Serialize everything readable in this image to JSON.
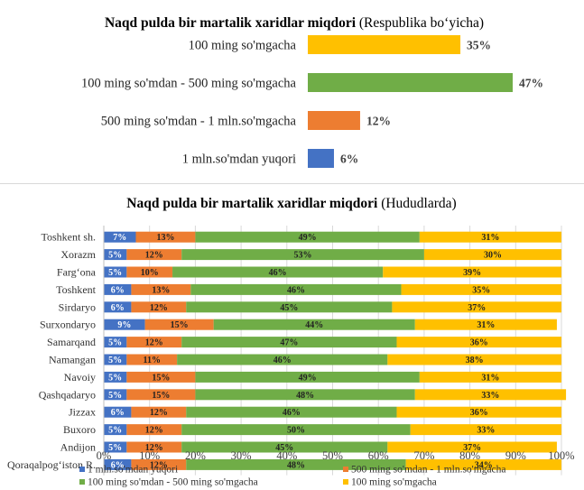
{
  "chart_data": [
    {
      "type": "bar",
      "orientation": "horizontal",
      "title_bold": "Naqd pulda bir martalik xaridlar miqdori",
      "title_rest": "(Respublika bo‘yicha)",
      "categories": [
        "100 ming so'mgacha",
        "100 ming so'mdan -  500 ming so'mgacha",
        "500 ming so'mdan - 1 mln.so'mgacha",
        "1 mln.so'mdan yuqori"
      ],
      "values": [
        35,
        47,
        12,
        6
      ],
      "value_labels": [
        "35%",
        "47%",
        "12%",
        "6%"
      ],
      "colors": [
        "#FFC000",
        "#70AD47",
        "#ED7D31",
        "#4472C4"
      ],
      "xlim": [
        0,
        47
      ]
    },
    {
      "type": "bar",
      "orientation": "horizontal",
      "stacked": "percent",
      "title_bold": "Naqd pulda bir martalik xaridlar miqdori",
      "title_rest": "(Hududlarda)",
      "categories": [
        "Toshkent sh.",
        "Xorazm",
        "Farg‘ona",
        "Toshkent",
        "Sirdaryo",
        "Surxondaryo",
        "Samarqand",
        "Namangan",
        "Navoiy",
        "Qashqadaryo",
        "Jizzax",
        "Buxoro",
        "Andijon",
        "Qoraqalpog‘iston R."
      ],
      "series": [
        {
          "name": "1 mln.so'mdan yuqori",
          "color": "#4472C4",
          "values": [
            7,
            5,
            5,
            6,
            6,
            9,
            5,
            5,
            5,
            5,
            6,
            5,
            5,
            6
          ]
        },
        {
          "name": "500 ming so'mdan - 1 mln.so'mgacha",
          "color": "#ED7D31",
          "values": [
            13,
            12,
            10,
            13,
            12,
            15,
            12,
            11,
            15,
            15,
            12,
            12,
            12,
            12
          ]
        },
        {
          "name": "100 ming so'mdan -  500 ming so'mgacha",
          "color": "#70AD47",
          "values": [
            49,
            53,
            46,
            46,
            45,
            44,
            47,
            46,
            49,
            48,
            46,
            50,
            45,
            48
          ]
        },
        {
          "name": "100 ming so'mgacha",
          "color": "#FFC000",
          "values": [
            31,
            30,
            39,
            35,
            37,
            31,
            36,
            38,
            31,
            33,
            36,
            33,
            37,
            34
          ]
        }
      ],
      "xlim": [
        0,
        100
      ],
      "x_ticks": [
        "0%",
        "10%",
        "20%",
        "30%",
        "40%",
        "50%",
        "60%",
        "70%",
        "80%",
        "90%",
        "100%"
      ],
      "grid": true,
      "legend": "bottom"
    }
  ]
}
